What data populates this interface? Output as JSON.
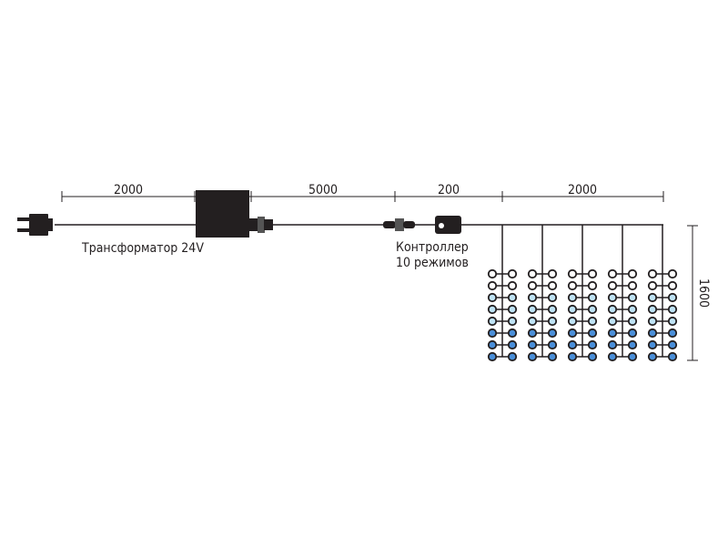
{
  "dimensions": {
    "plug_to_transformer": "2000",
    "transformer_to_connector": "5000",
    "connector_to_curtain": "200",
    "curtain_width": "2000",
    "curtain_height": "1600"
  },
  "labels": {
    "transformer": "Трансформатор 24V",
    "controller_line1": "Контроллер",
    "controller_line2": "10 режимов"
  },
  "curtain": {
    "strands": 5,
    "bulb_rows": [
      "white",
      "white",
      "light-blue",
      "light-blue",
      "light-blue",
      "blue",
      "blue",
      "blue"
    ]
  },
  "colors": {
    "line": "#231f20",
    "white": "#ffffff",
    "light-blue": "#bfe3f5",
    "blue": "#4a8fd9"
  }
}
